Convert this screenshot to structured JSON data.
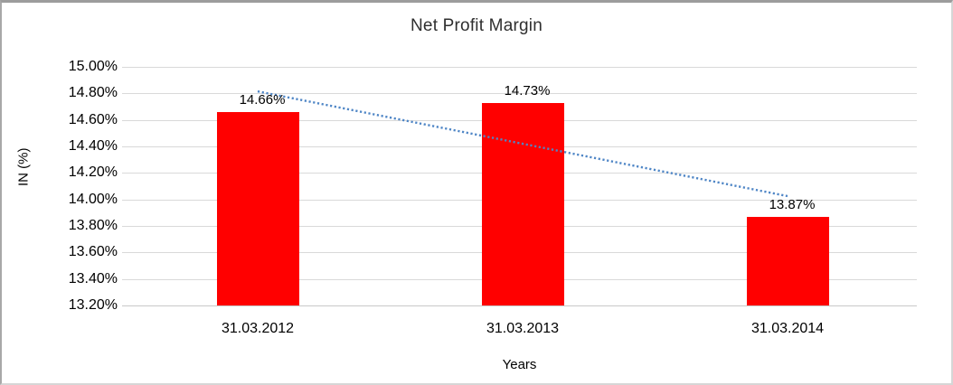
{
  "chart_data": {
    "type": "bar",
    "title": "Net Profit Margin",
    "xlabel": "Years",
    "ylabel": "IN (%)",
    "categories": [
      "31.03.2012",
      "31.03.2013",
      "31.03.2014"
    ],
    "values": [
      14.66,
      14.73,
      13.87
    ],
    "value_labels": [
      "14.66%",
      "14.73%",
      "13.87%"
    ],
    "ylim": [
      13.2,
      15.0
    ],
    "y_tick_step": 0.2,
    "y_tick_labels": [
      "15.00%",
      "14.80%",
      "14.60%",
      "14.40%",
      "14.20%",
      "14.00%",
      "13.80%",
      "13.60%",
      "13.40%",
      "13.20%"
    ],
    "grid": true,
    "legend": "none",
    "bar_color": "#ff0000",
    "gridline_color": "#d9d9d9",
    "trendline": {
      "type": "linear",
      "style": "dotted",
      "color": "#4f86c6",
      "span": "first-to-last-category"
    }
  }
}
